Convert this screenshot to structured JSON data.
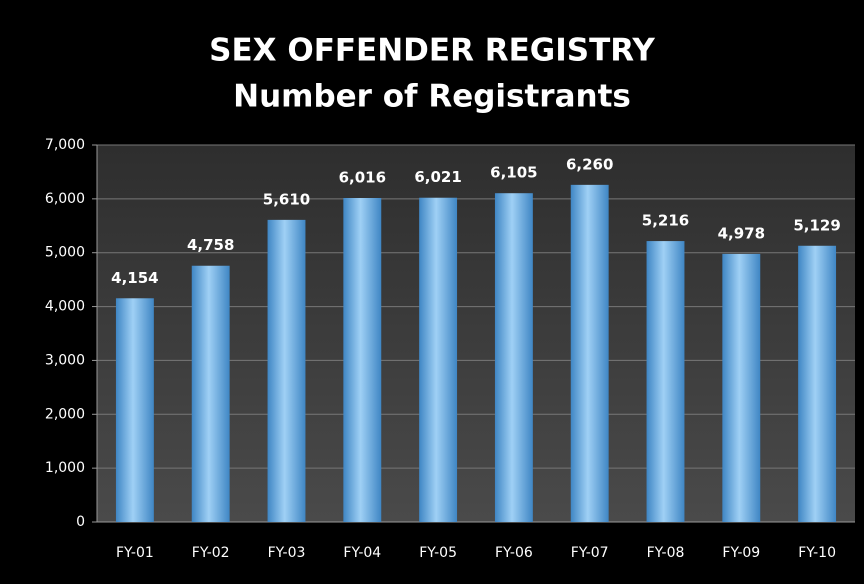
{
  "chart_data": {
    "type": "bar",
    "title": [
      "SEX OFFENDER REGISTRY",
      "Number of Registrants"
    ],
    "categories": [
      "FY-01",
      "FY-02",
      "FY-03",
      "FY-04",
      "FY-05",
      "FY-06",
      "FY-07",
      "FY-08",
      "FY-09",
      "FY-10"
    ],
    "values": [
      4154,
      4758,
      5610,
      6016,
      6021,
      6105,
      6260,
      5216,
      4978,
      5129
    ],
    "value_labels": [
      "4,154",
      "4,758",
      "5,610",
      "6,016",
      "6,021",
      "6,105",
      "6,260",
      "5,216",
      "4,978",
      "5,129"
    ],
    "color": "#6aaee0",
    "ylim": [
      0,
      7000
    ],
    "yticks": [
      0,
      {
        "value": 1000,
        "label": "1,000"
      },
      {
        "value": 2000,
        "label": "2,000"
      },
      {
        "value": 3000,
        "label": "3,000"
      },
      {
        "value": 4000,
        "label": "4,000"
      },
      {
        "value": 5000,
        "label": "5,000"
      },
      {
        "value": 6000,
        "label": "6,000"
      },
      {
        "value": 7000,
        "label": "7,000"
      }
    ],
    "grid": true
  }
}
